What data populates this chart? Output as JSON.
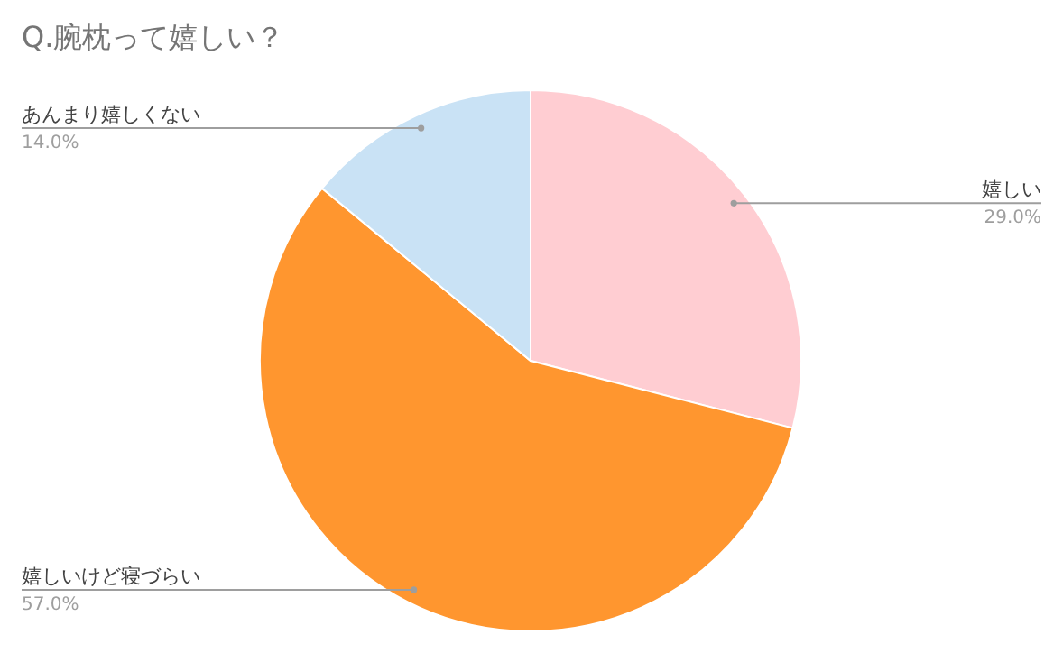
{
  "chart_data": {
    "type": "pie",
    "title": "Q.腕枕って嬉しい？",
    "categories": [
      "嬉しい",
      "嬉しいけど寝づらい",
      "あんまり嬉しくない"
    ],
    "values": [
      29,
      57,
      14
    ],
    "value_labels": [
      "29.0%",
      "57.0%",
      "14.0%"
    ],
    "colors": [
      "#ffcdd2",
      "#ff962f",
      "#c9e2f5"
    ]
  }
}
